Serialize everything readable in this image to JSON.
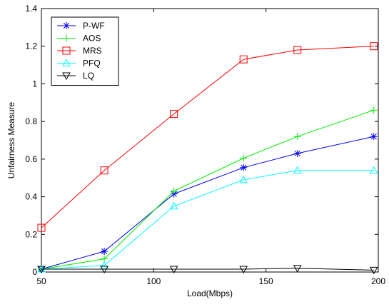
{
  "chart_data": {
    "type": "line",
    "title": "",
    "xlabel": "Load(Mbps)",
    "ylabel": "Unfairness Measure",
    "xlim": [
      50,
      200
    ],
    "ylim": [
      0,
      1.4
    ],
    "x_ticks": [
      "50",
      "100",
      "150",
      "200"
    ],
    "y_ticks": [
      "0",
      "0.2",
      "0.4",
      "0.6",
      "0.8",
      "1",
      "1.2",
      "1.4"
    ],
    "grid": true,
    "legend_position": "top-left",
    "x": [
      50,
      78,
      109,
      140,
      164,
      198
    ],
    "series": [
      {
        "name": "P-WF",
        "color": "#0000ff",
        "marker": "asterisk",
        "values": [
          0.015,
          0.11,
          0.415,
          0.555,
          0.63,
          0.72
        ]
      },
      {
        "name": "AOS",
        "color": "#00ee00",
        "marker": "plus",
        "values": [
          0.015,
          0.07,
          0.43,
          0.605,
          0.72,
          0.86
        ]
      },
      {
        "name": "MRS",
        "color": "#ff0000",
        "marker": "square",
        "values": [
          0.235,
          0.54,
          0.84,
          1.13,
          1.18,
          1.2
        ]
      },
      {
        "name": "PFQ",
        "color": "#00ffff",
        "marker": "triangle-up",
        "values": [
          0.015,
          0.035,
          0.35,
          0.49,
          0.54,
          0.54
        ]
      },
      {
        "name": "LQ",
        "color": "#000000",
        "marker": "triangle-down",
        "values": [
          0.015,
          0.015,
          0.015,
          0.015,
          0.02,
          0.01
        ]
      }
    ]
  }
}
